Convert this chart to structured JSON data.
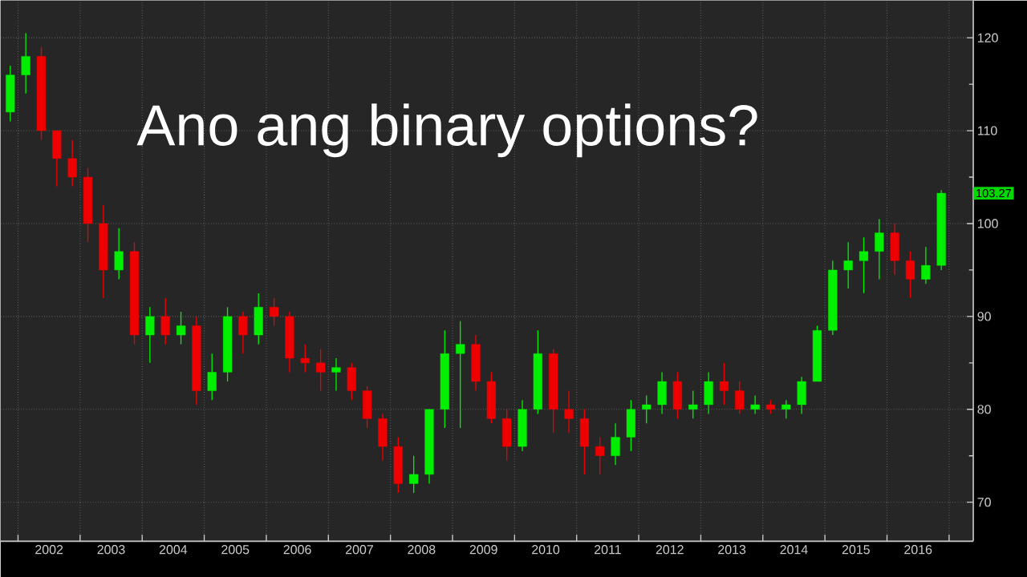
{
  "chart_data": {
    "type": "candlestick",
    "title": "Ano ang binary options?",
    "x": [
      2001.875,
      2002.125,
      2002.375,
      2002.625,
      2002.875,
      2003.125,
      2003.375,
      2003.625,
      2003.875,
      2004.125,
      2004.375,
      2004.625,
      2004.875,
      2005.125,
      2005.375,
      2005.625,
      2005.875,
      2006.125,
      2006.375,
      2006.625,
      2006.875,
      2007.125,
      2007.375,
      2007.625,
      2007.875,
      2008.125,
      2008.375,
      2008.625,
      2008.875,
      2009.125,
      2009.375,
      2009.625,
      2009.875,
      2010.125,
      2010.375,
      2010.625,
      2010.875,
      2011.125,
      2011.375,
      2011.625,
      2011.875,
      2012.125,
      2012.375,
      2012.625,
      2012.875,
      2013.125,
      2013.375,
      2013.625,
      2013.875,
      2014.125,
      2014.375,
      2014.625,
      2014.875,
      2015.125,
      2015.375,
      2015.625,
      2015.875,
      2016.125,
      2016.375,
      2016.625,
      2016.875
    ],
    "ohlc": [
      [
        112,
        117,
        111,
        116
      ],
      [
        116,
        120.5,
        114,
        118
      ],
      [
        118,
        119,
        109,
        110
      ],
      [
        110,
        110,
        104,
        107
      ],
      [
        107,
        109,
        104,
        105
      ],
      [
        105,
        106,
        98,
        100
      ],
      [
        100,
        102,
        92,
        95
      ],
      [
        95,
        99.5,
        94,
        97
      ],
      [
        97,
        98,
        87,
        88
      ],
      [
        88,
        91,
        85,
        90
      ],
      [
        90,
        92,
        87,
        88
      ],
      [
        88,
        90.5,
        87,
        89
      ],
      [
        89,
        90,
        80.5,
        82
      ],
      [
        82,
        86,
        81,
        84
      ],
      [
        84,
        91,
        83,
        90
      ],
      [
        90,
        90.5,
        86,
        88
      ],
      [
        88,
        92.5,
        87,
        91
      ],
      [
        91,
        92,
        89,
        90
      ],
      [
        90,
        90.5,
        84,
        85.5
      ],
      [
        85.5,
        87,
        84,
        85
      ],
      [
        85,
        86.5,
        82,
        84
      ],
      [
        84,
        85.5,
        82,
        84.5
      ],
      [
        84.5,
        85,
        81,
        82
      ],
      [
        82,
        82.5,
        78,
        79
      ],
      [
        79,
        79.5,
        74.5,
        76
      ],
      [
        76,
        77,
        71,
        72
      ],
      [
        72,
        75,
        71,
        73
      ],
      [
        73,
        80,
        72,
        80
      ],
      [
        80,
        88.5,
        78,
        86
      ],
      [
        86,
        89.5,
        78,
        87
      ],
      [
        87,
        88,
        82,
        83
      ],
      [
        83,
        84,
        78.5,
        79
      ],
      [
        79,
        80,
        74.5,
        76
      ],
      [
        76,
        81,
        75.5,
        80
      ],
      [
        80,
        88.5,
        79.5,
        86
      ],
      [
        86,
        86.5,
        77.5,
        80
      ],
      [
        80,
        82,
        77.5,
        79
      ],
      [
        79,
        80,
        73,
        76
      ],
      [
        76,
        77,
        73,
        75
      ],
      [
        75,
        78.5,
        74,
        77
      ],
      [
        77,
        81,
        75.5,
        80
      ],
      [
        80,
        81.5,
        78.5,
        80.5
      ],
      [
        80.5,
        84,
        79.5,
        83
      ],
      [
        83,
        84,
        79,
        80
      ],
      [
        80,
        82,
        79,
        80.5
      ],
      [
        80.5,
        84,
        79.5,
        83
      ],
      [
        83,
        85,
        80.5,
        82
      ],
      [
        82,
        83,
        79.5,
        80
      ],
      [
        80,
        81.5,
        79.5,
        80.5
      ],
      [
        80.5,
        81,
        79.5,
        80
      ],
      [
        80,
        81,
        79,
        80.5
      ],
      [
        80.5,
        83.5,
        79.5,
        83
      ],
      [
        83,
        89,
        83,
        88.5
      ],
      [
        88.5,
        96,
        88,
        95
      ],
      [
        95,
        98,
        93,
        96
      ],
      [
        96,
        98.5,
        92.5,
        97
      ],
      [
        97,
        100.5,
        94,
        99
      ],
      [
        99,
        100,
        94.5,
        96
      ],
      [
        96,
        97,
        92,
        94
      ],
      [
        94,
        97.5,
        93.5,
        95.5
      ],
      [
        95.5,
        103.6,
        95,
        103.27
      ]
    ],
    "colors": [
      "#00ee00",
      "#00ee00",
      "#ee0000",
      "#ee0000",
      "#ee0000",
      "#ee0000",
      "#ee0000",
      "#00ee00",
      "#ee0000",
      "#00ee00",
      "#ee0000",
      "#00ee00",
      "#ee0000",
      "#00ee00",
      "#00ee00",
      "#ee0000",
      "#00ee00",
      "#ee0000",
      "#ee0000",
      "#ee0000",
      "#ee0000",
      "#00ee00",
      "#ee0000",
      "#ee0000",
      "#ee0000",
      "#ee0000",
      "#00ee00",
      "#00ee00",
      "#00ee00",
      "#00ee00",
      "#ee0000",
      "#ee0000",
      "#ee0000",
      "#00ee00",
      "#00ee00",
      "#ee0000",
      "#ee0000",
      "#ee0000",
      "#ee0000",
      "#00ee00",
      "#00ee00",
      "#00ee00",
      "#00ee00",
      "#ee0000",
      "#00ee00",
      "#00ee00",
      "#ee0000",
      "#ee0000",
      "#00ee00",
      "#ee0000",
      "#00ee00",
      "#00ee00",
      "#00ee00",
      "#00ee00",
      "#00ee00",
      "#00ee00",
      "#00ee00",
      "#ee0000",
      "#ee0000",
      "#00ee00",
      "#00ee00"
    ],
    "xlim": [
      2001.72,
      2017.39
    ],
    "ylim": [
      65.8,
      124.0
    ],
    "xticks": [
      {
        "value": 2002,
        "label": null
      },
      {
        "value": 2003,
        "label": null
      },
      {
        "value": 2004,
        "label": null
      },
      {
        "value": 2005,
        "label": null
      },
      {
        "value": 2006,
        "label": null
      },
      {
        "value": 2007,
        "label": null
      },
      {
        "value": 2008,
        "label": null
      },
      {
        "value": 2009,
        "label": null
      },
      {
        "value": 2010,
        "label": null
      },
      {
        "value": 2011,
        "label": null
      },
      {
        "value": 2012,
        "label": null
      },
      {
        "value": 2013,
        "label": null
      },
      {
        "value": 2014,
        "label": null
      },
      {
        "value": 2015,
        "label": null
      },
      {
        "value": 2016,
        "label": null
      },
      {
        "value": 2017,
        "label": null
      },
      {
        "value": 2002.5,
        "label": "2002"
      },
      {
        "value": 2003.5,
        "label": "2003"
      },
      {
        "value": 2004.5,
        "label": "2004"
      },
      {
        "value": 2005.5,
        "label": "2005"
      },
      {
        "value": 2006.5,
        "label": "2006"
      },
      {
        "value": 2007.5,
        "label": "2007"
      },
      {
        "value": 2008.5,
        "label": "2008"
      },
      {
        "value": 2009.5,
        "label": "2009"
      },
      {
        "value": 2010.5,
        "label": "2010"
      },
      {
        "value": 2011.5,
        "label": "2011"
      },
      {
        "value": 2012.5,
        "label": "2012"
      },
      {
        "value": 2013.5,
        "label": "2013"
      },
      {
        "value": 2014.5,
        "label": "2014"
      },
      {
        "value": 2015.5,
        "label": "2015"
      },
      {
        "value": 2016.5,
        "label": "2016"
      }
    ],
    "yticks": [
      70,
      80,
      90,
      100,
      110,
      120,
      {
        "value": 75,
        "label": null
      },
      {
        "value": 85,
        "label": null
      },
      {
        "value": 95,
        "label": null
      },
      {
        "value": 105,
        "label": null
      },
      {
        "value": 115,
        "label": null
      }
    ],
    "grid": true,
    "annotations": [
      "103.27"
    ]
  }
}
